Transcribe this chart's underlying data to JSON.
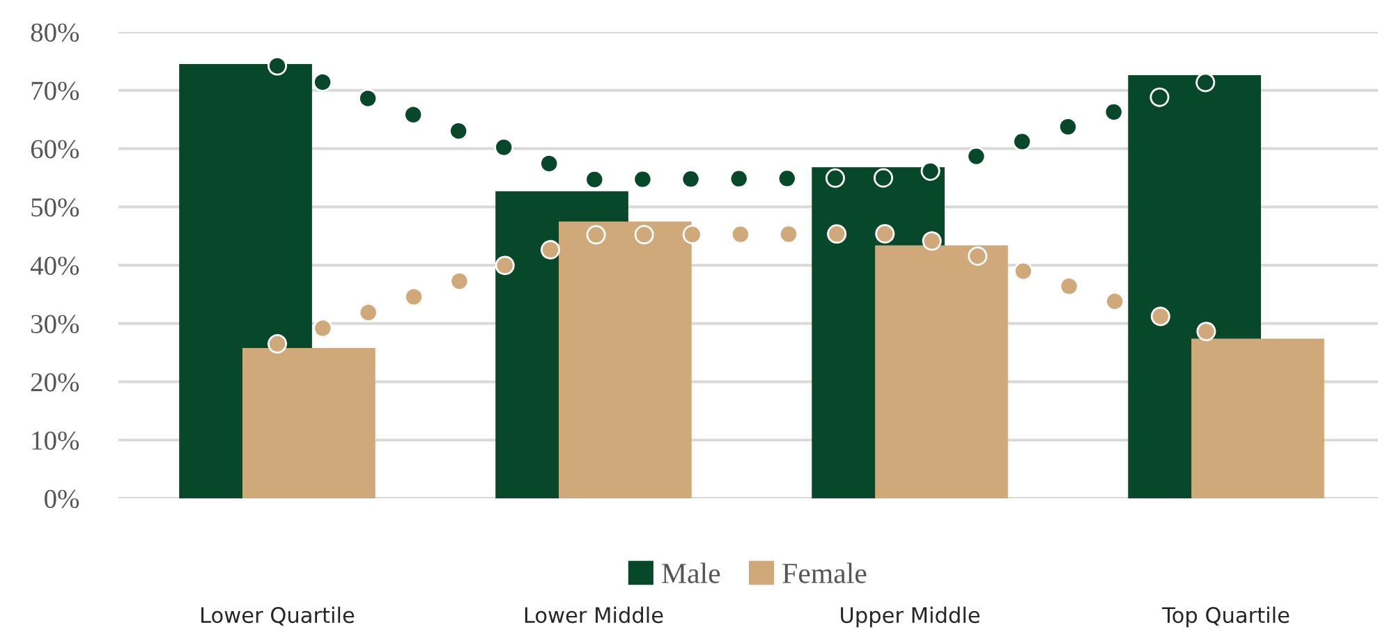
{
  "chart_data": {
    "type": "bar",
    "categories": [
      "Lower Quartile",
      "Lower Middle",
      "Upper Middle",
      "Top Quartile"
    ],
    "series": [
      {
        "name": "Male",
        "color": "#07472a",
        "values": [
          74.5,
          52.7,
          56.8,
          72.6
        ]
      },
      {
        "name": "Female",
        "color": "#cfa97a",
        "values": [
          25.8,
          47.5,
          43.4,
          27.4
        ]
      },
      {
        "type": "line",
        "line_style": "dotted",
        "color": "#07472a",
        "values": [
          74.2,
          54.7,
          55.0,
          72.5
        ]
      },
      {
        "type": "line",
        "line_style": "dotted",
        "color": "#cfa97a",
        "values": [
          26.5,
          45.2,
          45.4,
          27.5
        ]
      }
    ],
    "ylim": [
      0,
      80
    ],
    "yticks": [
      {
        "value": 0,
        "label": "0%"
      },
      {
        "value": 10,
        "label": "10%"
      },
      {
        "value": 20,
        "label": "20%"
      },
      {
        "value": 30,
        "label": "30%"
      },
      {
        "value": 40,
        "label": "40%"
      },
      {
        "value": 50,
        "label": "50%"
      },
      {
        "value": 60,
        "label": "60%"
      },
      {
        "value": 70,
        "label": "70%"
      },
      {
        "value": 80,
        "label": "80%"
      }
    ],
    "grid": "y",
    "legend": "bottom"
  }
}
